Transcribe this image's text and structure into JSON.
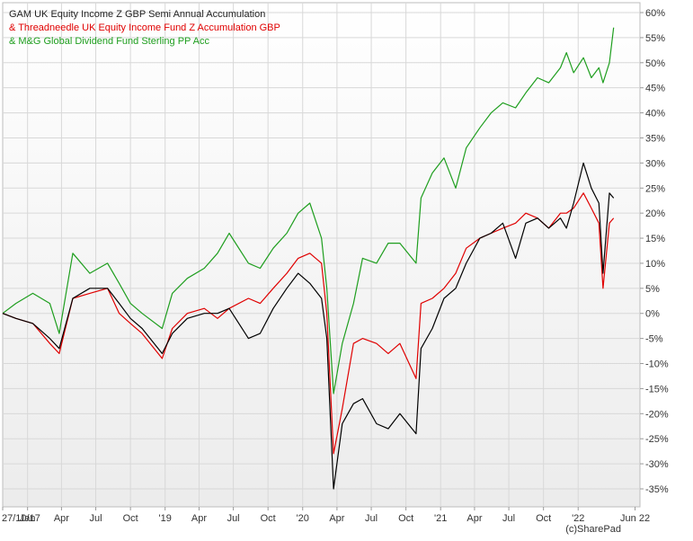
{
  "chart_data": {
    "type": "line",
    "title": "",
    "xlabel": "",
    "ylabel": "",
    "ylim": [
      -37,
      62
    ],
    "y_ticks": [
      60,
      55,
      50,
      45,
      40,
      35,
      30,
      25,
      20,
      15,
      10,
      5,
      0,
      -5,
      -10,
      -15,
      -20,
      -25,
      -30,
      -35
    ],
    "y_tick_labels": [
      "60%",
      "55%",
      "50%",
      "45%",
      "40%",
      "35%",
      "30%",
      "25%",
      "20%",
      "15%",
      "10%",
      "5%",
      "0%",
      "-5%",
      "-10%",
      "-15%",
      "-20%",
      "-25%",
      "-30%",
      "-35%"
    ],
    "xlim": [
      "2017-10-27",
      "2022-06-14"
    ],
    "x_ticks": [
      "2017-10-27",
      "2018-01-01",
      "2018-04-01",
      "2018-07-01",
      "2018-10-01",
      "2019-01-01",
      "2019-04-01",
      "2019-07-01",
      "2019-10-01",
      "2020-01-01",
      "2020-04-01",
      "2020-07-01",
      "2020-10-01",
      "2021-01-01",
      "2021-04-01",
      "2021-07-01",
      "2021-10-01",
      "2022-01-01",
      "2022-06-01"
    ],
    "x_tick_labels": [
      "27/10/17",
      "Jan",
      "Apr",
      "Jul",
      "Oct",
      "'19",
      "Apr",
      "Jul",
      "Oct",
      "'20",
      "Apr",
      "Jul",
      "Oct",
      "'21",
      "Apr",
      "Jul",
      "Oct",
      "'22",
      "Jun 22"
    ],
    "grid": true,
    "legend_position": "top-left",
    "copyright": "(c)SharePad",
    "series": [
      {
        "name": "GAM UK Equity Income Z GBP Semi Annual Accumulation",
        "legend_label": "GAM UK Equity Income Z GBP Semi Annual Accumulation",
        "color": "#000000",
        "x": [
          "2017-10-27",
          "2017-12-01",
          "2018-01-15",
          "2018-03-01",
          "2018-03-26",
          "2018-05-01",
          "2018-06-15",
          "2018-08-01",
          "2018-09-01",
          "2018-10-01",
          "2018-11-01",
          "2018-12-24",
          "2019-01-20",
          "2019-03-01",
          "2019-04-15",
          "2019-05-20",
          "2019-06-20",
          "2019-08-10",
          "2019-09-10",
          "2019-10-15",
          "2019-11-20",
          "2019-12-20",
          "2020-01-20",
          "2020-02-20",
          "2020-03-05",
          "2020-03-23",
          "2020-04-15",
          "2020-05-15",
          "2020-06-08",
          "2020-07-15",
          "2020-08-15",
          "2020-09-15",
          "2020-10-28",
          "2020-11-10",
          "2020-12-10",
          "2021-01-10",
          "2021-02-10",
          "2021-03-10",
          "2021-04-15",
          "2021-05-15",
          "2021-06-15",
          "2021-07-19",
          "2021-08-15",
          "2021-09-15",
          "2021-10-15",
          "2021-11-15",
          "2021-12-01",
          "2021-12-20",
          "2022-01-15",
          "2022-02-05",
          "2022-02-25",
          "2022-03-08",
          "2022-03-25",
          "2022-04-05"
        ],
        "values": [
          0,
          -1,
          -2,
          -5,
          -7,
          3,
          5,
          5,
          2,
          -1,
          -3,
          -8,
          -4,
          -1,
          0,
          0,
          1,
          -5,
          -4,
          1,
          5,
          8,
          6,
          3,
          -5,
          -35,
          -22,
          -18,
          -17,
          -22,
          -23,
          -20,
          -24,
          -7,
          -3,
          3,
          5,
          10,
          15,
          16,
          18,
          11,
          18,
          19,
          17,
          19,
          17,
          22,
          30,
          25,
          22,
          8,
          24,
          23
        ]
      },
      {
        "name": "Threadneedle UK Equity Income Fund Z Accumulation GBP",
        "legend_label": "& Threadneedle UK Equity Income Fund Z Accumulation GBP",
        "color": "#e00000",
        "x": [
          "2017-10-27",
          "2017-12-01",
          "2018-01-15",
          "2018-03-01",
          "2018-03-26",
          "2018-05-01",
          "2018-06-15",
          "2018-08-01",
          "2018-09-01",
          "2018-10-01",
          "2018-11-01",
          "2018-12-24",
          "2019-01-20",
          "2019-03-01",
          "2019-04-15",
          "2019-05-20",
          "2019-06-20",
          "2019-08-10",
          "2019-09-10",
          "2019-10-15",
          "2019-11-20",
          "2019-12-20",
          "2020-01-20",
          "2020-02-20",
          "2020-03-05",
          "2020-03-23",
          "2020-04-15",
          "2020-05-15",
          "2020-06-08",
          "2020-07-15",
          "2020-08-15",
          "2020-09-15",
          "2020-10-28",
          "2020-11-10",
          "2020-12-10",
          "2021-01-10",
          "2021-02-10",
          "2021-03-10",
          "2021-04-15",
          "2021-05-15",
          "2021-06-15",
          "2021-07-19",
          "2021-08-15",
          "2021-09-15",
          "2021-10-15",
          "2021-11-15",
          "2021-12-01",
          "2021-12-20",
          "2022-01-15",
          "2022-02-05",
          "2022-02-25",
          "2022-03-08",
          "2022-03-25",
          "2022-04-05"
        ],
        "values": [
          0,
          -1,
          -2,
          -6,
          -8,
          3,
          4,
          5,
          0,
          -2,
          -4,
          -9,
          -3,
          0,
          1,
          -1,
          1,
          3,
          2,
          5,
          8,
          11,
          12,
          10,
          0,
          -28,
          -19,
          -6,
          -5,
          -6,
          -8,
          -6,
          -13,
          2,
          3,
          5,
          8,
          13,
          15,
          16,
          17,
          18,
          20,
          19,
          17,
          20,
          20,
          21,
          24,
          21,
          18,
          5,
          18,
          19
        ]
      },
      {
        "name": "M&G Global Dividend Fund Sterling PP Acc",
        "legend_label": "& M&G Global Dividend Fund Sterling PP Acc",
        "color": "#1e9e1e",
        "x": [
          "2017-10-27",
          "2017-12-01",
          "2018-01-15",
          "2018-03-01",
          "2018-03-26",
          "2018-05-01",
          "2018-06-15",
          "2018-08-01",
          "2018-09-01",
          "2018-10-01",
          "2018-11-01",
          "2018-12-24",
          "2019-01-20",
          "2019-03-01",
          "2019-04-15",
          "2019-05-20",
          "2019-06-20",
          "2019-08-10",
          "2019-09-10",
          "2019-10-15",
          "2019-11-20",
          "2019-12-20",
          "2020-01-20",
          "2020-02-20",
          "2020-03-05",
          "2020-03-23",
          "2020-04-15",
          "2020-05-15",
          "2020-06-08",
          "2020-07-15",
          "2020-08-15",
          "2020-09-15",
          "2020-10-28",
          "2020-11-10",
          "2020-12-10",
          "2021-01-10",
          "2021-02-10",
          "2021-03-10",
          "2021-04-15",
          "2021-05-15",
          "2021-06-15",
          "2021-07-19",
          "2021-08-15",
          "2021-09-15",
          "2021-10-15",
          "2021-11-15",
          "2021-12-01",
          "2021-12-20",
          "2022-01-15",
          "2022-02-05",
          "2022-02-25",
          "2022-03-08",
          "2022-03-25",
          "2022-04-05"
        ],
        "values": [
          0,
          2,
          4,
          2,
          -4,
          12,
          8,
          10,
          6,
          2,
          0,
          -3,
          4,
          7,
          9,
          12,
          16,
          10,
          9,
          13,
          16,
          20,
          22,
          15,
          5,
          -16,
          -6,
          2,
          11,
          10,
          14,
          14,
          10,
          23,
          28,
          31,
          25,
          33,
          37,
          40,
          42,
          41,
          44,
          47,
          46,
          49,
          52,
          48,
          51,
          47,
          49,
          46,
          50,
          57
        ]
      }
    ]
  }
}
